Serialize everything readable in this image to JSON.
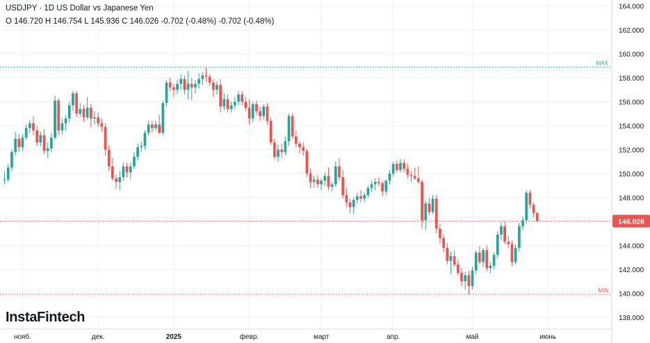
{
  "header": {
    "symbol_line": "USDJPY · 1D US Dollar vs Japanese Yen",
    "ohlc_line": "O 146.720 H 146.754 L 145.936 C 146.026 -0.702 (-0.48%) -0.702 (-0.48%)"
  },
  "logo": "InstaFintech",
  "colors": {
    "up": "#26a69a",
    "down": "#ef5350",
    "grid": "#eef0f3",
    "max_line": "#26a69a",
    "min_line": "#ef5350",
    "price_line": "#ef5350"
  },
  "chart_data": {
    "type": "candlestick",
    "symbol": "USDJPY",
    "timeframe": "1D",
    "ylim": [
      137,
      164.5
    ],
    "y_ticks": [
      138,
      140,
      142,
      144,
      146,
      148,
      150,
      152,
      154,
      156,
      158,
      160,
      162,
      164
    ],
    "y_tick_labels": [
      "138.000",
      "140.000",
      "142.000",
      "144.000",
      "146.000",
      "148.000",
      "150.000",
      "152.000",
      "154.000",
      "156.000",
      "158.000",
      "160.000",
      "162.000",
      "164.000"
    ],
    "x_labels": [
      "нояб.",
      "дек.",
      "2025",
      "февр.",
      "март",
      "апр.",
      "май",
      "июнь"
    ],
    "x_label_bars": [
      5,
      26,
      47,
      68,
      88,
      108,
      130,
      151
    ],
    "total_slots": 170,
    "max_level": 158.9,
    "max_label": "MAX",
    "min_level": 139.9,
    "min_label": "MIN",
    "last_price": 146.026,
    "last_price_label": "146.026",
    "candles": [
      [
        149.5,
        150.2,
        149.1,
        149.5
      ],
      [
        149.5,
        150.8,
        149.3,
        150.5
      ],
      [
        150.5,
        152.0,
        150.2,
        151.8
      ],
      [
        151.8,
        153.5,
        151.5,
        152.9
      ],
      [
        152.9,
        153.3,
        151.8,
        152.2
      ],
      [
        152.2,
        153.3,
        151.9,
        153.0
      ],
      [
        153.0,
        154.1,
        152.8,
        153.8
      ],
      [
        153.8,
        154.5,
        153.4,
        154.2
      ],
      [
        154.2,
        154.8,
        153.2,
        153.6
      ],
      [
        153.6,
        154.0,
        152.3,
        152.6
      ],
      [
        152.6,
        153.5,
        152.3,
        153.2
      ],
      [
        153.2,
        153.7,
        151.6,
        151.9
      ],
      [
        151.9,
        152.6,
        151.3,
        152.1
      ],
      [
        152.1,
        153.4,
        151.8,
        153.0
      ],
      [
        153.0,
        156.5,
        152.8,
        156.1
      ],
      [
        156.1,
        156.3,
        153.2,
        153.6
      ],
      [
        153.6,
        154.6,
        153.3,
        154.2
      ],
      [
        154.2,
        154.9,
        153.6,
        154.6
      ],
      [
        154.6,
        156.0,
        154.3,
        155.7
      ],
      [
        155.7,
        156.9,
        155.2,
        156.7
      ],
      [
        156.7,
        156.9,
        154.7,
        155.0
      ],
      [
        155.0,
        155.9,
        154.7,
        155.4
      ],
      [
        155.4,
        155.7,
        154.3,
        154.7
      ],
      [
        154.7,
        156.4,
        154.5,
        155.5
      ],
      [
        155.5,
        155.8,
        153.9,
        154.6
      ],
      [
        154.6,
        155.2,
        154.1,
        154.7
      ],
      [
        154.7,
        155.1,
        153.9,
        154.2
      ],
      [
        154.2,
        154.6,
        153.5,
        153.9
      ],
      [
        153.9,
        154.2,
        151.5,
        152.0
      ],
      [
        152.0,
        152.4,
        150.2,
        150.6
      ],
      [
        150.6,
        151.3,
        149.4,
        149.6
      ],
      [
        149.6,
        149.9,
        148.7,
        149.3
      ],
      [
        149.3,
        150.2,
        148.6,
        149.7
      ],
      [
        149.7,
        150.9,
        149.4,
        150.6
      ],
      [
        150.6,
        150.9,
        149.7,
        150.1
      ],
      [
        150.1,
        150.9,
        149.5,
        150.6
      ],
      [
        150.6,
        151.8,
        150.4,
        151.4
      ],
      [
        151.4,
        152.5,
        151.1,
        152.2
      ],
      [
        152.2,
        152.7,
        151.8,
        152.3
      ],
      [
        152.3,
        153.6,
        152.0,
        153.4
      ],
      [
        153.4,
        154.4,
        153.2,
        154.1
      ],
      [
        154.1,
        154.4,
        153.4,
        153.8
      ],
      [
        153.8,
        154.4,
        153.6,
        154.1
      ],
      [
        154.1,
        154.9,
        153.3,
        153.4
      ],
      [
        153.4,
        156.1,
        153.2,
        155.9
      ],
      [
        155.9,
        157.8,
        155.6,
        157.6
      ],
      [
        157.6,
        158.0,
        156.9,
        157.2
      ],
      [
        157.2,
        157.5,
        156.4,
        157.0
      ],
      [
        157.0,
        157.8,
        156.6,
        157.5
      ],
      [
        157.5,
        158.3,
        157.0,
        157.9
      ],
      [
        157.9,
        158.2,
        156.6,
        157.0
      ],
      [
        157.0,
        158.6,
        156.2,
        157.5
      ],
      [
        157.5,
        158.0,
        156.1,
        157.2
      ],
      [
        157.2,
        157.8,
        156.7,
        157.5
      ],
      [
        157.5,
        158.4,
        157.1,
        157.9
      ],
      [
        157.9,
        158.5,
        157.4,
        158.2
      ],
      [
        158.2,
        158.9,
        157.7,
        158.1
      ],
      [
        158.1,
        158.3,
        157.3,
        157.6
      ],
      [
        157.6,
        157.9,
        156.4,
        157.0
      ],
      [
        157.0,
        157.7,
        156.6,
        157.4
      ],
      [
        157.4,
        157.9,
        155.1,
        155.6
      ],
      [
        155.6,
        156.7,
        155.3,
        156.2
      ],
      [
        156.2,
        156.6,
        155.1,
        155.4
      ],
      [
        155.4,
        156.0,
        155.1,
        155.7
      ],
      [
        155.7,
        156.4,
        155.4,
        156.0
      ],
      [
        156.0,
        156.9,
        155.7,
        156.6
      ],
      [
        156.6,
        156.9,
        155.7,
        156.0
      ],
      [
        156.0,
        156.4,
        155.2,
        155.5
      ],
      [
        155.5,
        156.2,
        154.1,
        154.6
      ],
      [
        154.6,
        156.0,
        154.3,
        155.8
      ],
      [
        155.8,
        156.1,
        154.9,
        155.2
      ],
      [
        155.2,
        155.6,
        154.4,
        154.8
      ],
      [
        154.8,
        155.8,
        154.5,
        155.6
      ],
      [
        155.6,
        155.9,
        154.1,
        154.4
      ],
      [
        154.4,
        154.7,
        152.4,
        152.6
      ],
      [
        152.6,
        152.9,
        151.2,
        151.4
      ],
      [
        151.4,
        152.4,
        151.0,
        152.0
      ],
      [
        152.0,
        152.5,
        151.3,
        151.8
      ],
      [
        151.8,
        153.1,
        151.5,
        152.7
      ],
      [
        152.7,
        155.0,
        152.3,
        154.8
      ],
      [
        154.8,
        155.0,
        152.9,
        153.1
      ],
      [
        153.1,
        153.6,
        152.2,
        152.5
      ],
      [
        152.5,
        152.7,
        151.7,
        152.2
      ],
      [
        152.2,
        152.6,
        151.5,
        151.9
      ],
      [
        151.9,
        152.1,
        149.7,
        150.0
      ],
      [
        150.0,
        150.4,
        148.8,
        149.3
      ],
      [
        149.3,
        149.8,
        148.8,
        149.5
      ],
      [
        149.5,
        149.9,
        148.8,
        149.1
      ],
      [
        149.1,
        149.6,
        148.6,
        149.4
      ],
      [
        149.4,
        150.1,
        149.0,
        149.8
      ],
      [
        149.8,
        150.5,
        148.6,
        148.9
      ],
      [
        148.9,
        149.3,
        148.5,
        149.1
      ],
      [
        149.1,
        151.0,
        148.9,
        150.6
      ],
      [
        150.6,
        151.3,
        149.4,
        149.7
      ],
      [
        149.7,
        150.3,
        147.9,
        148.2
      ],
      [
        148.2,
        148.8,
        147.2,
        147.6
      ],
      [
        147.6,
        147.9,
        146.7,
        147.2
      ],
      [
        147.2,
        148.0,
        146.6,
        147.8
      ],
      [
        147.8,
        148.4,
        147.5,
        148.1
      ],
      [
        148.1,
        148.6,
        147.6,
        147.9
      ],
      [
        147.9,
        148.4,
        147.6,
        148.2
      ],
      [
        148.2,
        149.0,
        148.0,
        148.8
      ],
      [
        148.8,
        149.4,
        148.5,
        149.1
      ],
      [
        149.1,
        149.6,
        148.6,
        149.3
      ],
      [
        149.3,
        149.7,
        148.9,
        149.2
      ],
      [
        149.2,
        149.4,
        148.1,
        148.5
      ],
      [
        148.5,
        149.5,
        148.2,
        149.4
      ],
      [
        149.4,
        150.3,
        149.1,
        150.0
      ],
      [
        150.0,
        151.0,
        149.7,
        150.8
      ],
      [
        150.8,
        151.1,
        150.1,
        150.3
      ],
      [
        150.3,
        151.2,
        150.1,
        150.9
      ],
      [
        150.9,
        151.2,
        150.1,
        150.4
      ],
      [
        150.4,
        150.8,
        149.6,
        149.9
      ],
      [
        149.9,
        150.2,
        149.3,
        149.8
      ],
      [
        149.8,
        150.5,
        149.5,
        149.6
      ],
      [
        149.6,
        150.6,
        149.1,
        149.3
      ],
      [
        149.3,
        149.5,
        145.4,
        146.1
      ],
      [
        146.1,
        147.7,
        145.3,
        147.5
      ],
      [
        147.5,
        148.0,
        146.5,
        146.8
      ],
      [
        146.8,
        148.2,
        146.6,
        147.9
      ],
      [
        147.9,
        148.2,
        145.0,
        145.4
      ],
      [
        145.4,
        145.8,
        144.1,
        144.6
      ],
      [
        144.6,
        144.9,
        143.4,
        143.8
      ],
      [
        143.8,
        144.2,
        142.4,
        142.7
      ],
      [
        142.7,
        143.5,
        141.6,
        143.1
      ],
      [
        143.1,
        143.6,
        142.2,
        142.4
      ],
      [
        142.4,
        142.8,
        141.5,
        141.7
      ],
      [
        141.7,
        142.1,
        140.6,
        141.0
      ],
      [
        141.0,
        141.8,
        140.3,
        141.5
      ],
      [
        141.5,
        141.9,
        139.9,
        140.6
      ],
      [
        140.6,
        142.2,
        140.3,
        141.9
      ],
      [
        141.9,
        143.6,
        141.6,
        143.4
      ],
      [
        143.4,
        143.9,
        142.4,
        142.6
      ],
      [
        142.6,
        143.8,
        142.2,
        143.6
      ],
      [
        143.6,
        144.0,
        141.9,
        142.1
      ],
      [
        142.1,
        142.6,
        141.7,
        142.3
      ],
      [
        142.3,
        143.4,
        142.0,
        143.2
      ],
      [
        143.2,
        145.2,
        142.9,
        144.9
      ],
      [
        144.9,
        145.9,
        144.5,
        145.6
      ],
      [
        145.6,
        146.0,
        144.1,
        144.3
      ],
      [
        144.3,
        144.8,
        143.8,
        144.1
      ],
      [
        144.1,
        144.4,
        142.3,
        142.6
      ],
      [
        142.6,
        144.1,
        142.4,
        143.8
      ],
      [
        143.8,
        145.9,
        143.5,
        145.6
      ],
      [
        145.6,
        146.4,
        145.3,
        146.1
      ],
      [
        146.1,
        148.6,
        145.8,
        148.4
      ],
      [
        148.4,
        148.6,
        147.1,
        147.4
      ],
      [
        147.4,
        147.6,
        146.3,
        146.7
      ],
      [
        146.7,
        146.754,
        145.936,
        146.026
      ]
    ]
  }
}
